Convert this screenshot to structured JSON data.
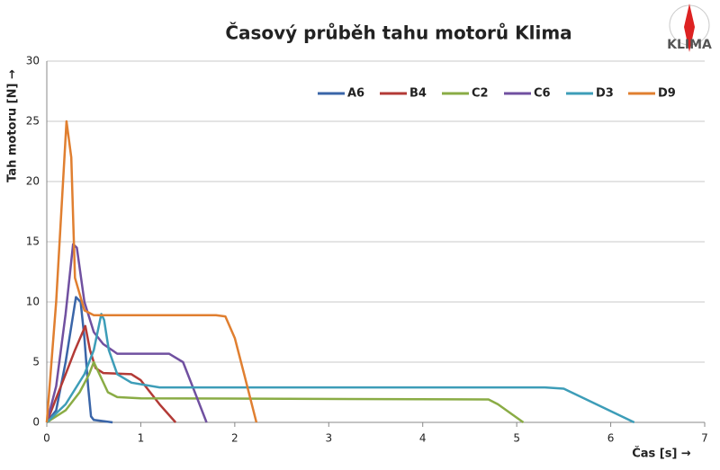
{
  "logo": "KLIMA",
  "chart_data": {
    "type": "line",
    "title": "Časový průběh tahu motorů Klima",
    "x_label": "Čas [s] →",
    "y_label": "Tah motoru [N] →",
    "xlim": [
      0,
      7
    ],
    "xticks": [
      0,
      1,
      2,
      3,
      4,
      5,
      6,
      7
    ],
    "ylim": [
      0,
      30
    ],
    "yticks": [
      0,
      5,
      10,
      15,
      20,
      25,
      30
    ],
    "grid": true,
    "legend": "top-right",
    "series": [
      {
        "name": "A6",
        "color": "#3a65a8",
        "x": [
          0,
          0.1,
          0.2,
          0.31,
          0.36,
          0.4,
          0.44,
          0.47,
          0.5,
          0.7
        ],
        "values": [
          0,
          1,
          5,
          10.4,
          10,
          7,
          3,
          0.5,
          0.2,
          0
        ]
      },
      {
        "name": "B4",
        "color": "#b33a36",
        "x": [
          0,
          0.1,
          0.2,
          0.3,
          0.41,
          0.46,
          0.52,
          0.6,
          0.9,
          1.0,
          1.2,
          1.37
        ],
        "values": [
          0,
          2,
          4,
          6,
          8,
          6,
          4.5,
          4.1,
          4,
          3.5,
          1.5,
          0
        ]
      },
      {
        "name": "C2",
        "color": "#8aac45",
        "x": [
          0,
          0.2,
          0.35,
          0.45,
          0.5,
          0.56,
          0.65,
          0.75,
          1,
          4.7,
          4.8,
          5.07
        ],
        "values": [
          0,
          1,
          2.5,
          4,
          5,
          4,
          2.5,
          2.1,
          2,
          1.9,
          1.5,
          0
        ]
      },
      {
        "name": "C6",
        "color": "#7050a0",
        "x": [
          0,
          0.1,
          0.2,
          0.28,
          0.32,
          0.4,
          0.5,
          0.6,
          0.75,
          1.3,
          1.45,
          1.6,
          1.7
        ],
        "values": [
          0,
          3,
          9,
          14.8,
          14.5,
          10,
          7.5,
          6.5,
          5.7,
          5.7,
          5,
          2,
          0
        ]
      },
      {
        "name": "D3",
        "color": "#3d9db8",
        "x": [
          0,
          0.2,
          0.4,
          0.5,
          0.58,
          0.61,
          0.66,
          0.75,
          0.9,
          1.2,
          5.3,
          5.5,
          6.25
        ],
        "values": [
          0,
          1.5,
          4,
          6,
          9,
          8.5,
          6,
          4,
          3.3,
          2.9,
          2.9,
          2.8,
          0
        ]
      },
      {
        "name": "D9",
        "color": "#e07f30",
        "x": [
          0,
          0.1,
          0.21,
          0.26,
          0.3,
          0.4,
          0.5,
          1.8,
          1.9,
          2,
          2.1,
          2.23
        ],
        "values": [
          0,
          10,
          25,
          22,
          12,
          9.3,
          8.9,
          8.9,
          8.8,
          7,
          4,
          0
        ]
      }
    ]
  }
}
